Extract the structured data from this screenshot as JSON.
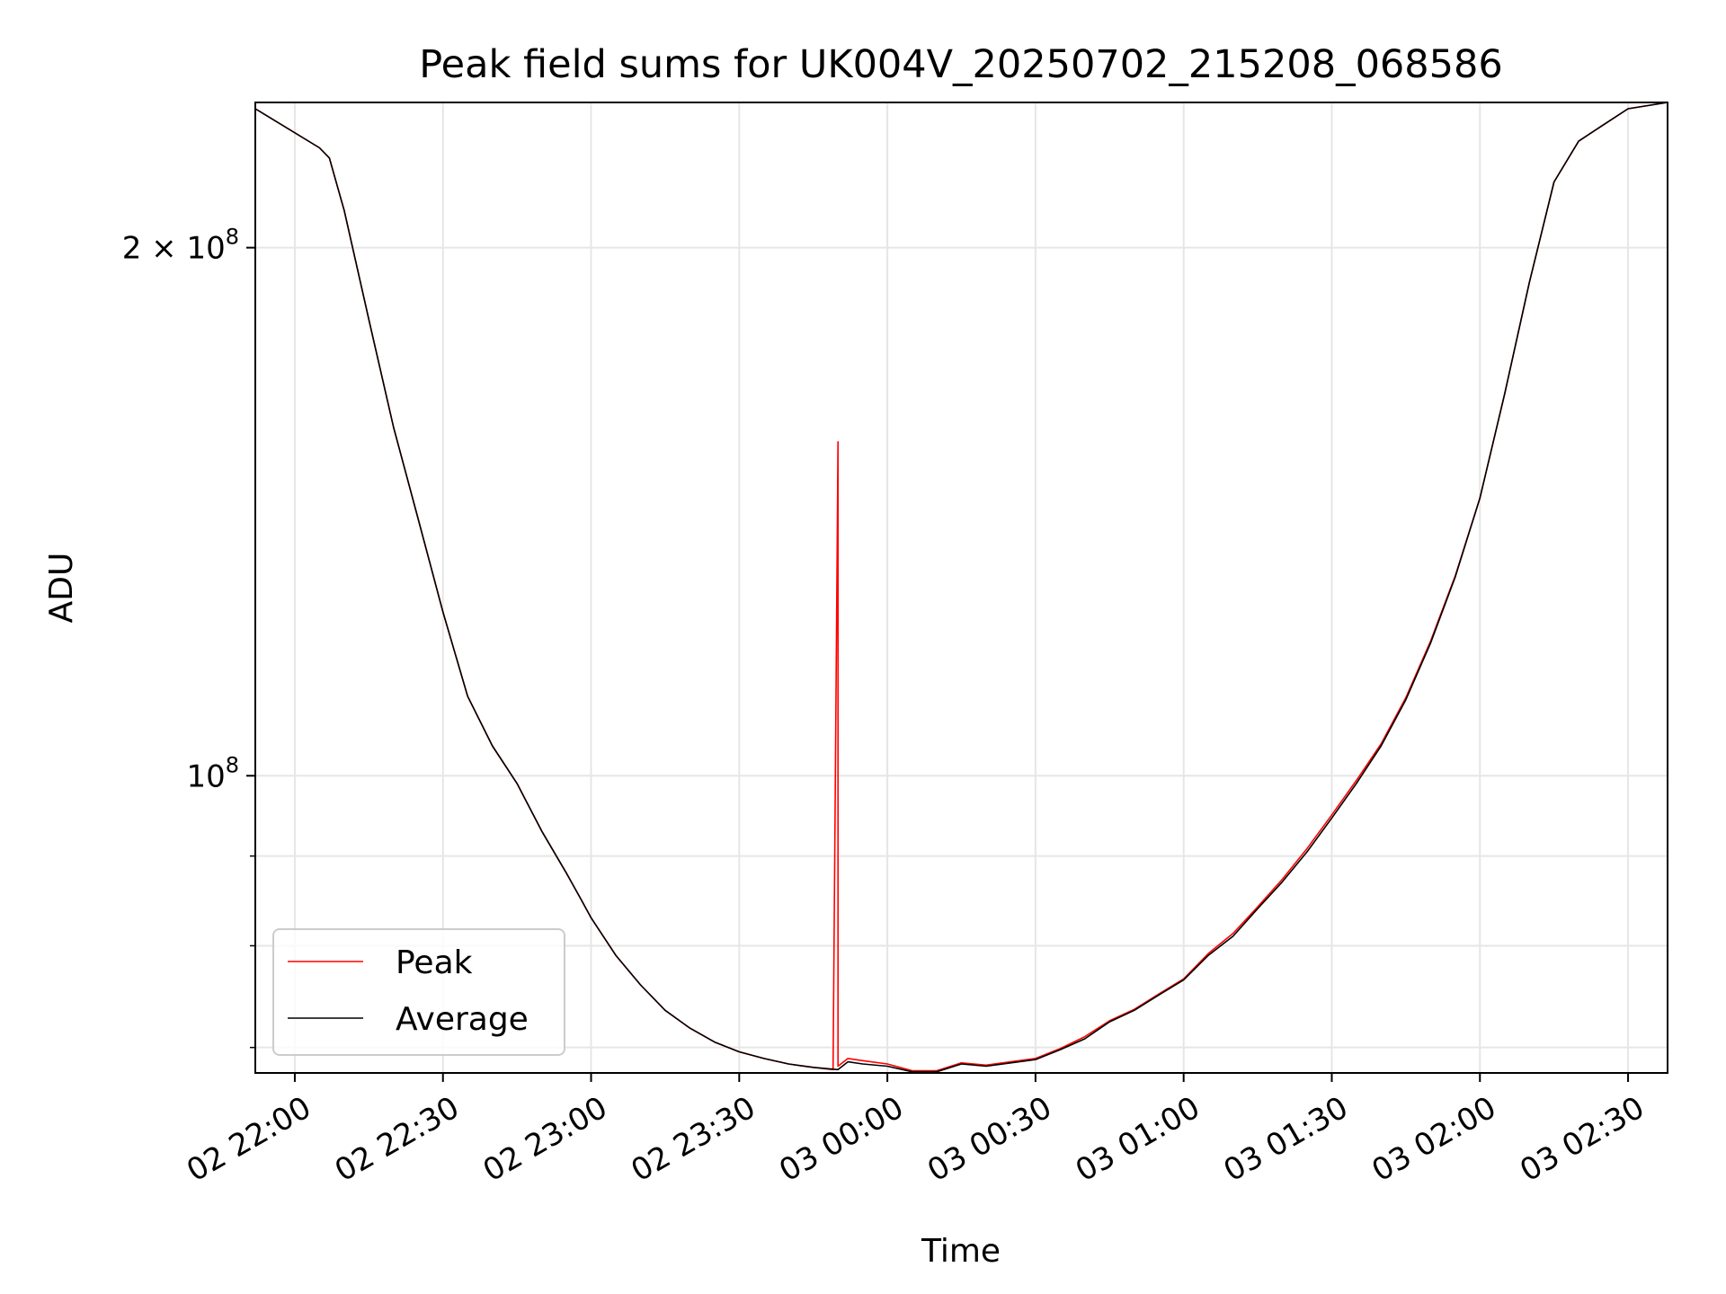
{
  "chart_data": {
    "type": "line",
    "title": "Peak field sums for UK004V_20250702_215208_068586",
    "xlabel": "Time",
    "ylabel": "ADU",
    "y_scale": "log",
    "grid": true,
    "legend_position": "lower-left",
    "xlim": [
      "2025-07-02 21:52",
      "2025-07-03 02:38"
    ],
    "ylim": [
      67700000,
      242000000
    ],
    "x_ticks": [
      {
        "value": "2025-07-02 22:00",
        "label": "02 22:00"
      },
      {
        "value": "2025-07-02 22:30",
        "label": "02 22:30"
      },
      {
        "value": "2025-07-02 23:00",
        "label": "02 23:00"
      },
      {
        "value": "2025-07-02 23:30",
        "label": "02 23:30"
      },
      {
        "value": "2025-07-03 00:00",
        "label": "03 00:00"
      },
      {
        "value": "2025-07-03 00:30",
        "label": "03 00:30"
      },
      {
        "value": "2025-07-03 01:00",
        "label": "03 01:00"
      },
      {
        "value": "2025-07-03 01:30",
        "label": "03 01:30"
      },
      {
        "value": "2025-07-03 02:00",
        "label": "03 02:00"
      },
      {
        "value": "2025-07-03 02:30",
        "label": "03 02:30"
      }
    ],
    "y_ticks": [
      {
        "value": 200000000,
        "label": "2 × 10",
        "exp": "8"
      },
      {
        "value": 100000000,
        "label": "10",
        "exp": "8"
      }
    ],
    "y_minor_ticks": [
      70000000,
      80000000,
      90000000
    ],
    "series": [
      {
        "name": "Peak",
        "color": "#ff0000",
        "x": [
          "2025-07-02 21:52",
          "2025-07-02 22:05",
          "2025-07-02 22:07",
          "2025-07-02 22:10",
          "2025-07-02 22:15",
          "2025-07-02 22:20",
          "2025-07-02 22:25",
          "2025-07-02 22:30",
          "2025-07-02 22:35",
          "2025-07-02 22:40",
          "2025-07-02 22:45",
          "2025-07-02 22:50",
          "2025-07-02 22:55",
          "2025-07-02 22:58",
          "2025-07-02 23:00",
          "2025-07-02 23:05",
          "2025-07-02 23:10",
          "2025-07-02 23:15",
          "2025-07-02 23:20",
          "2025-07-02 23:25",
          "2025-07-02 23:30",
          "2025-07-02 23:35",
          "2025-07-02 23:40",
          "2025-07-02 23:45",
          "2025-07-02 23:49",
          "2025-07-02 23:50",
          "2025-07-02 23:50",
          "2025-07-02 23:52",
          "2025-07-02 23:55",
          "2025-07-03 00:00",
          "2025-07-03 00:05",
          "2025-07-03 00:10",
          "2025-07-03 00:15",
          "2025-07-03 00:20",
          "2025-07-03 00:25",
          "2025-07-03 00:30",
          "2025-07-03 00:35",
          "2025-07-03 00:40",
          "2025-07-03 00:45",
          "2025-07-03 00:50",
          "2025-07-03 00:55",
          "2025-07-03 01:00",
          "2025-07-03 01:05",
          "2025-07-03 01:10",
          "2025-07-03 01:15",
          "2025-07-03 01:20",
          "2025-07-03 01:25",
          "2025-07-03 01:30",
          "2025-07-03 01:35",
          "2025-07-03 01:40",
          "2025-07-03 01:45",
          "2025-07-03 01:50",
          "2025-07-03 01:55",
          "2025-07-03 02:00",
          "2025-07-03 02:05",
          "2025-07-03 02:10",
          "2025-07-03 02:15",
          "2025-07-03 02:20",
          "2025-07-03 02:25",
          "2025-07-03 02:30",
          "2025-07-03 02:38"
        ],
        "y": [
          240000000,
          228000000,
          225000000,
          210000000,
          182000000,
          158000000,
          140000000,
          124000000,
          111000000,
          104000000,
          99000000,
          93000000,
          88000000,
          85000000,
          83000000,
          79000000,
          76000000,
          73500000,
          71800000,
          70500000,
          69600000,
          69000000,
          68500000,
          68200000,
          68000000,
          155000000,
          68300000,
          69000000,
          68800000,
          68500000,
          67900000,
          67900000,
          68600000,
          68400000,
          68700000,
          69000000,
          69900000,
          71000000,
          72500000,
          73600000,
          75100000,
          76600000,
          79200000,
          81300000,
          84200000,
          87300000,
          90900000,
          95000000,
          99400000,
          104300000,
          110800000,
          119300000,
          130000000,
          144000000,
          165000000,
          191000000,
          218000000,
          230000000,
          235000000,
          240000000,
          242000000
        ]
      },
      {
        "name": "Average",
        "color": "#000000",
        "x": [
          "2025-07-02 21:52",
          "2025-07-02 22:05",
          "2025-07-02 22:07",
          "2025-07-02 22:10",
          "2025-07-02 22:15",
          "2025-07-02 22:20",
          "2025-07-02 22:25",
          "2025-07-02 22:30",
          "2025-07-02 22:35",
          "2025-07-02 22:40",
          "2025-07-02 22:45",
          "2025-07-02 22:50",
          "2025-07-02 22:55",
          "2025-07-02 22:58",
          "2025-07-02 23:00",
          "2025-07-02 23:05",
          "2025-07-02 23:10",
          "2025-07-02 23:15",
          "2025-07-02 23:20",
          "2025-07-02 23:25",
          "2025-07-02 23:30",
          "2025-07-02 23:35",
          "2025-07-02 23:40",
          "2025-07-02 23:45",
          "2025-07-02 23:50",
          "2025-07-02 23:52",
          "2025-07-02 23:55",
          "2025-07-03 00:00",
          "2025-07-03 00:05",
          "2025-07-03 00:10",
          "2025-07-03 00:15",
          "2025-07-03 00:20",
          "2025-07-03 00:25",
          "2025-07-03 00:30",
          "2025-07-03 00:35",
          "2025-07-03 00:40",
          "2025-07-03 00:45",
          "2025-07-03 00:50",
          "2025-07-03 00:55",
          "2025-07-03 01:00",
          "2025-07-03 01:05",
          "2025-07-03 01:10",
          "2025-07-03 01:15",
          "2025-07-03 01:20",
          "2025-07-03 01:25",
          "2025-07-03 01:30",
          "2025-07-03 01:35",
          "2025-07-03 01:40",
          "2025-07-03 01:45",
          "2025-07-03 01:50",
          "2025-07-03 01:55",
          "2025-07-03 02:00",
          "2025-07-03 02:05",
          "2025-07-03 02:10",
          "2025-07-03 02:15",
          "2025-07-03 02:20",
          "2025-07-03 02:25",
          "2025-07-03 02:30",
          "2025-07-03 02:38"
        ],
        "y": [
          240000000,
          228000000,
          225000000,
          210000000,
          182000000,
          158000000,
          140000000,
          124000000,
          111000000,
          104000000,
          99000000,
          93000000,
          88000000,
          85000000,
          83000000,
          79000000,
          76000000,
          73500000,
          71800000,
          70500000,
          69600000,
          69000000,
          68500000,
          68200000,
          68000000,
          68700000,
          68500000,
          68300000,
          67800000,
          67800000,
          68500000,
          68300000,
          68600000,
          68900000,
          69800000,
          70800000,
          72400000,
          73500000,
          75000000,
          76500000,
          79000000,
          81000000,
          84000000,
          87000000,
          90500000,
          94600000,
          99000000,
          104000000,
          110500000,
          119000000,
          129800000,
          144000000,
          165000000,
          191000000,
          218000000,
          230000000,
          235000000,
          240000000,
          242000000
        ]
      }
    ]
  }
}
